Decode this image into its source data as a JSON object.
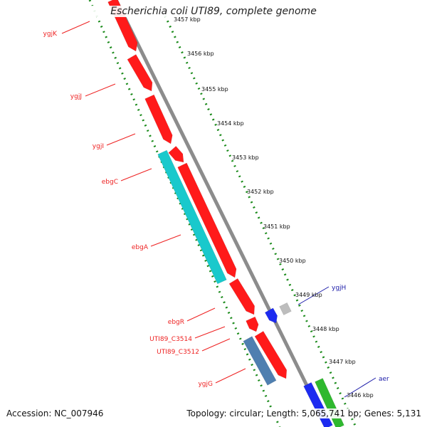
{
  "title": "Escherichia coli UTI89, complete genome",
  "footer": {
    "accession": "Accession: NC_007946",
    "summary": "Topology: circular; Length: 5,065,741 bp; Genes: 5,131"
  },
  "colors": {
    "forward_gene": "#ff1a1a",
    "rrna_like": "#19c9cc",
    "steel": "#4f7fb0",
    "blue": "#1d2bf0",
    "grey": "#bdbdbd",
    "green": "#2fb82f",
    "backbone": "#8c8c8c",
    "dotted_ring": "#1a8a1a",
    "left_label": "#ee2222",
    "right_label": "#1a1aa8"
  },
  "scale": {
    "ticks": [
      {
        "label": "3457 kbp"
      },
      {
        "label": "3456 kbp"
      },
      {
        "label": "3455 kbp"
      },
      {
        "label": "3454 kbp"
      },
      {
        "label": "3453 kbp"
      },
      {
        "label": "3452 kbp"
      },
      {
        "label": "3451 kbp"
      },
      {
        "label": "3450 kbp"
      },
      {
        "label": "3449 kbp"
      },
      {
        "label": "3448 kbp"
      },
      {
        "label": "3447 kbp"
      },
      {
        "label": "3446 kbp"
      }
    ]
  },
  "genes_left_labels": [
    "ygjK",
    "ygjJ",
    "ygjI",
    "ebgC",
    "ebgA",
    "ebgR",
    "UTI89_C3514",
    "UTI89_C3512",
    "ygjG"
  ],
  "genes_right_labels": [
    "ygjH",
    "aer"
  ]
}
